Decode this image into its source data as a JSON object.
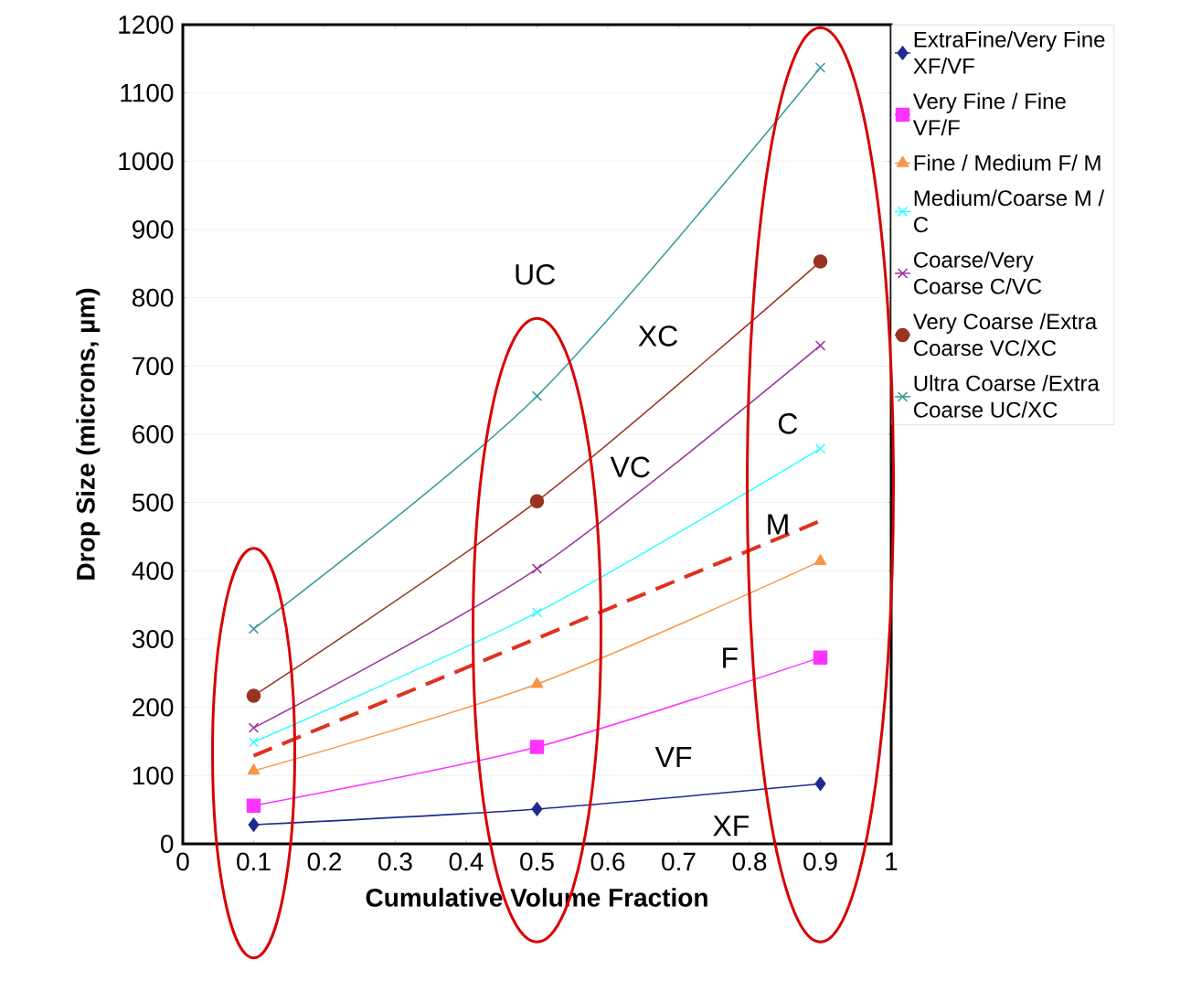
{
  "chart_data": {
    "type": "line",
    "xlabel": "Cumulative Volume Fraction",
    "ylabel": "Drop Size (microns, µm)",
    "x": [
      0.1,
      0.5,
      0.9
    ],
    "series": [
      {
        "name": "ExtraFine/Very Fine XF/VF",
        "color": "#1f2a8f",
        "marker": "diamond",
        "values": [
          28,
          51,
          88
        ]
      },
      {
        "name": "Very Fine / Fine  VF/F",
        "color": "#ff33ff",
        "marker": "square",
        "values": [
          56,
          142,
          273
        ]
      },
      {
        "name": "Fine / Medium F/ M",
        "color": "#f79646",
        "marker": "triangle",
        "values": [
          107,
          234,
          414
        ]
      },
      {
        "name": "Medium/Coarse M / C",
        "color": "#33ffff",
        "marker": "cross",
        "values": [
          149,
          339,
          579
        ]
      },
      {
        "name": "Coarse/Very Coarse  C/VC",
        "color": "#993399",
        "marker": "cross",
        "values": [
          170,
          403,
          730
        ]
      },
      {
        "name": "Very Coarse /Extra Coarse VC/XC",
        "color": "#993322",
        "marker": "circle",
        "values": [
          217,
          502,
          853
        ]
      },
      {
        "name": "Ultra Coarse /Extra Coarse UC/XC",
        "color": "#339999",
        "marker": "cross",
        "values": [
          315,
          656,
          1137
        ]
      },
      {
        "color": "#e03020",
        "marker": "none",
        "line_style": "dashed",
        "x": [
          0.1,
          0.9
        ],
        "values": [
          129,
          473
        ]
      }
    ],
    "xlim": [
      0,
      1
    ],
    "ylim": [
      0,
      1200
    ],
    "xticks": [
      0,
      0.1,
      0.2,
      0.3,
      0.4,
      0.5,
      0.6,
      0.7,
      0.8,
      0.9,
      1
    ],
    "yticks": [
      0,
      100,
      200,
      300,
      400,
      500,
      600,
      700,
      800,
      900,
      1000,
      1100,
      1200
    ],
    "grid": "y",
    "legend": "right",
    "annotations": [
      "UC",
      "XC",
      "VC",
      "C",
      "M",
      "F",
      "VF",
      "XF"
    ]
  }
}
